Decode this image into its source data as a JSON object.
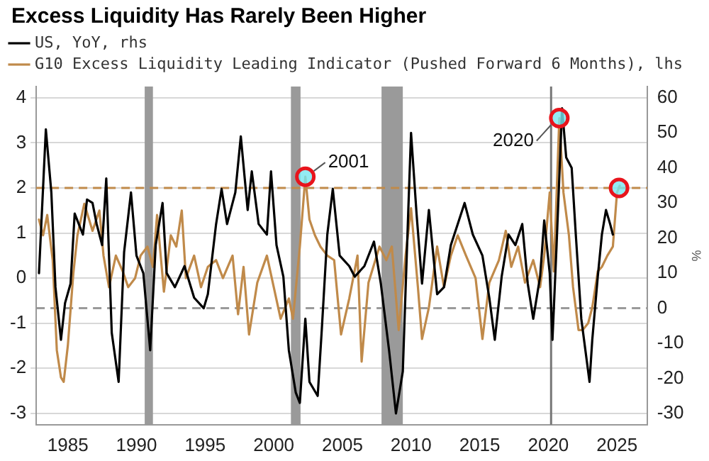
{
  "chart_data": {
    "type": "line",
    "title": "Excess Liquidity Has Rarely Been Higher",
    "y2label": "%",
    "legend": "top left",
    "grid": "y",
    "marker": "none",
    "line_style": "solid",
    "xlim": [
      1982.7,
      2027.2
    ],
    "xticks": [
      1985,
      1990,
      1995,
      2000,
      2005,
      2010,
      2015,
      2020,
      2025
    ],
    "ylim": [
      -3.25,
      4.25
    ],
    "yticks": [
      -3,
      -2,
      -1,
      0,
      1,
      2,
      3,
      4
    ],
    "y2lim": [
      -33.2,
      63.2
    ],
    "y2ticks": [
      -30,
      -20,
      -10,
      0,
      10,
      20,
      30,
      40,
      50,
      60
    ],
    "series": [
      {
        "name": "US, YoY, rhs",
        "color": "#000000",
        "axis": "y2",
        "x": [
          1982.9,
          1983.4,
          1983.8,
          1984.1,
          1984.5,
          1984.8,
          1985.2,
          1985.5,
          1986.1,
          1986.4,
          1986.8,
          1987.1,
          1987.5,
          1987.8,
          1988.2,
          1988.7,
          1989.1,
          1989.6,
          1990.0,
          1990.5,
          1991.0,
          1991.4,
          1991.9,
          1992.2,
          1992.8,
          1993.5,
          1994.2,
          1994.9,
          1995.2,
          1995.8,
          1996.2,
          1996.6,
          1997.2,
          1997.6,
          1998.1,
          1998.4,
          1998.9,
          1999.5,
          1999.8,
          2000.2,
          2000.7,
          2001.1,
          2001.6,
          2001.9,
          2002.3,
          2002.6,
          2003.2,
          2003.5,
          2003.9,
          2004.3,
          2004.8,
          2005.5,
          2005.9,
          2006.6,
          2007.3,
          2007.8,
          2008.4,
          2008.9,
          2009.4,
          2009.8,
          2010.0,
          2010.4,
          2010.8,
          2011.3,
          2011.9,
          2012.4,
          2012.9,
          2013.4,
          2013.9,
          2014.5,
          2015.2,
          2015.7,
          2016.1,
          2016.6,
          2017.1,
          2017.6,
          2018.1,
          2018.5,
          2018.9,
          2019.4,
          2019.7,
          2020.1,
          2020.3,
          2020.6,
          2021.0,
          2021.3,
          2021.7,
          2022.0,
          2022.4,
          2022.7,
          2023.0,
          2023.2,
          2023.6,
          2023.9,
          2024.2,
          2024.5,
          2024.7
        ],
        "values": [
          10,
          51,
          33,
          6,
          -9,
          1.5,
          7,
          27,
          21,
          31,
          30,
          24,
          18,
          37,
          -7,
          -21,
          16,
          33,
          15,
          10,
          -12,
          18,
          30,
          10,
          6,
          12,
          3,
          0,
          4,
          24,
          34,
          24,
          33,
          49,
          28,
          39,
          24,
          21,
          39,
          18,
          9,
          -12,
          -24,
          -27,
          -3,
          -21,
          -25,
          -6,
          21,
          34,
          15,
          12,
          9,
          12,
          19,
          7,
          -12,
          -30,
          -18,
          28,
          50,
          27,
          7,
          28,
          4,
          6,
          18,
          24,
          30,
          21,
          15,
          3,
          -9,
          9,
          21,
          18,
          24,
          7,
          -3,
          9,
          25,
          10,
          -9,
          18,
          57,
          43,
          40,
          21,
          -3,
          -12,
          -21,
          -9,
          9,
          21,
          28,
          24,
          21
        ]
      },
      {
        "name": "G10 Excess Liquidity Leading Indicator (Pushed Forward 6 Months), lhs",
        "color": "#c08a4a",
        "axis": "y",
        "x": [
          1982.9,
          1983.2,
          1983.5,
          1983.9,
          1984.2,
          1984.5,
          1984.7,
          1985.0,
          1985.4,
          1985.7,
          1986.2,
          1986.8,
          1987.3,
          1987.6,
          1988.0,
          1988.5,
          1989.0,
          1989.4,
          1989.9,
          1990.3,
          1990.8,
          1991.2,
          1991.5,
          1992.0,
          1992.5,
          1992.9,
          1993.3,
          1993.6,
          1994.2,
          1994.7,
          1995.2,
          1995.8,
          1996.3,
          1997.0,
          1997.4,
          1997.8,
          1998.2,
          1998.8,
          1999.5,
          2000.0,
          2000.5,
          2001.1,
          2001.4,
          2001.9,
          2002.3,
          2002.6,
          2003.0,
          2003.4,
          2003.9,
          2004.4,
          2004.9,
          2005.5,
          2006.1,
          2006.4,
          2006.9,
          2007.7,
          2008.2,
          2008.6,
          2009.1,
          2009.6,
          2010.0,
          2010.5,
          2010.8,
          2011.3,
          2011.9,
          2012.4,
          2012.9,
          2013.4,
          2014.0,
          2014.7,
          2015.2,
          2015.7,
          2016.4,
          2016.9,
          2017.3,
          2017.8,
          2018.3,
          2018.9,
          2019.4,
          2019.7,
          2020.1,
          2020.4,
          2020.8,
          2021.1,
          2021.5,
          2021.8,
          2022.2,
          2022.5,
          2022.9,
          2023.2,
          2023.6,
          2023.9,
          2024.3,
          2024.7,
          2025.0,
          2025.2
        ],
        "values": [
          1.3,
          0.95,
          1.4,
          0.4,
          -1.6,
          -2.2,
          -2.3,
          -1.5,
          0.1,
          0.95,
          1.65,
          1.05,
          1.5,
          0.5,
          -0.2,
          0.5,
          0.15,
          -0.2,
          0,
          0.5,
          0.7,
          0.25,
          1.4,
          -0.3,
          0.95,
          0.7,
          1.5,
          0,
          0.5,
          -0.2,
          0.25,
          0.4,
          0,
          0.5,
          -0.8,
          0.25,
          -1.25,
          -0.1,
          0.5,
          -0.2,
          -0.9,
          -0.45,
          -0.9,
          0.7,
          2.25,
          1.3,
          0.95,
          0.7,
          0.5,
          0.4,
          -1.25,
          -0.45,
          0.5,
          -1.85,
          -0.1,
          0.7,
          0.4,
          0.7,
          -1.15,
          0.5,
          1.55,
          -0.2,
          -1.35,
          -0.65,
          0.7,
          -0.2,
          0.5,
          0.95,
          0.5,
          0,
          -1.35,
          -0.1,
          0.4,
          1.05,
          0.25,
          0.7,
          -0.1,
          0.4,
          -0.2,
          0.5,
          1.9,
          0.15,
          3.55,
          1.9,
          0.95,
          -0.2,
          -1.15,
          -1.15,
          -1.0,
          -0.65,
          0.15,
          0.25,
          0.5,
          0.7,
          1.9,
          2.05
        ]
      },
      {
        "type": "scatter",
        "marker": "circle",
        "color": "#e8141c",
        "axis": "y",
        "x": [
          2002.3,
          2020.8,
          2025.15
        ],
        "values": [
          2.25,
          3.55,
          2.0
        ]
      }
    ],
    "annotations": [
      {
        "text": "2001",
        "x": 2002.3,
        "y": 2.25
      },
      {
        "text": "2020",
        "x": 2020.8,
        "y": 3.55
      }
    ],
    "ref_lines": [
      {
        "axis": "y",
        "value": 2,
        "color": "#c08a4a",
        "line_style": "dashed"
      },
      {
        "axis": "y2",
        "value": 0,
        "color": "#9a9a9a",
        "line_style": "dashed"
      },
      {
        "axis": "x",
        "value": 2020.2,
        "color": "#777777",
        "line_style": "solid"
      }
    ],
    "bands": [
      {
        "axis": "x",
        "from": 1990.6,
        "to": 1991.2,
        "color": "#9a9a9a"
      },
      {
        "axis": "x",
        "from": 2001.25,
        "to": 2001.95,
        "color": "#9a9a9a"
      },
      {
        "axis": "x",
        "from": 2007.85,
        "to": 2009.4,
        "color": "#9a9a9a"
      }
    ]
  }
}
